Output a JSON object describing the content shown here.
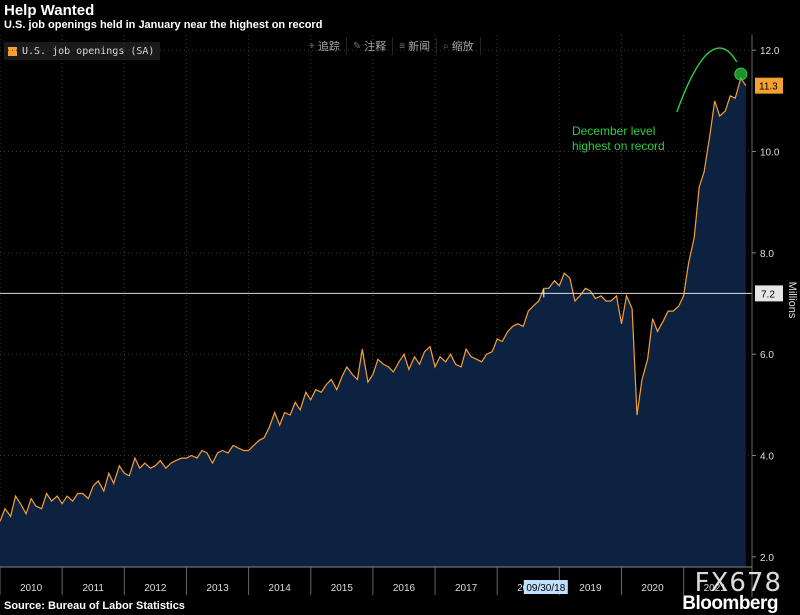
{
  "title": "Help Wanted",
  "subtitle": "U.S. job openings held in January near the highest on record",
  "source": "Source: Bureau of Labor Statistics",
  "brand": "Bloomberg",
  "watermark": "FX678",
  "toolbar": {
    "items": [
      {
        "icon": "plus-icon",
        "glyph": "+",
        "label": "追踪"
      },
      {
        "icon": "pen-icon",
        "glyph": "✎",
        "label": "注释"
      },
      {
        "icon": "news-icon",
        "glyph": "≡",
        "label": "新闻"
      },
      {
        "icon": "zoom-icon",
        "glyph": "⌕",
        "label": "缩放"
      }
    ]
  },
  "colors": {
    "line": "#f5a033",
    "fill": "#0d2240",
    "annotation": "#2ecc40",
    "background": "#000000"
  },
  "chart_data": {
    "type": "area",
    "title": "Help Wanted",
    "subtitle": "U.S. job openings held in January near the highest on record",
    "ylabel": "Millions",
    "ylim": [
      1.8,
      12.3
    ],
    "yticks": [
      2.0,
      4.0,
      6.0,
      8.0,
      10.0,
      12.0
    ],
    "yticklabels": [
      "2.0",
      "4.0",
      "6.0",
      "8.0",
      "10.0",
      "12.0"
    ],
    "xticklabels": [
      "2010",
      "2011",
      "2012",
      "2013",
      "2014",
      "2015",
      "2016",
      "2017",
      "2018",
      "2019",
      "2020",
      "2021"
    ],
    "xlim": [
      2010.0,
      2022.1
    ],
    "legend": {
      "position": "top-left",
      "entries": [
        "U.S. job openings (SA)"
      ]
    },
    "series": [
      {
        "name": "U.S. job openings (SA)",
        "x": [
          2010.0,
          2010.08,
          2010.17,
          2010.25,
          2010.33,
          2010.42,
          2010.5,
          2010.58,
          2010.67,
          2010.75,
          2010.83,
          2010.92,
          2011.0,
          2011.08,
          2011.17,
          2011.25,
          2011.33,
          2011.42,
          2011.5,
          2011.58,
          2011.67,
          2011.75,
          2011.83,
          2011.92,
          2012.0,
          2012.08,
          2012.17,
          2012.25,
          2012.33,
          2012.42,
          2012.5,
          2012.58,
          2012.67,
          2012.75,
          2012.83,
          2012.92,
          2013.0,
          2013.08,
          2013.17,
          2013.25,
          2013.33,
          2013.42,
          2013.5,
          2013.58,
          2013.67,
          2013.75,
          2013.83,
          2013.92,
          2014.0,
          2014.08,
          2014.17,
          2014.25,
          2014.33,
          2014.42,
          2014.5,
          2014.58,
          2014.67,
          2014.75,
          2014.83,
          2014.92,
          2015.0,
          2015.08,
          2015.17,
          2015.25,
          2015.33,
          2015.42,
          2015.5,
          2015.58,
          2015.67,
          2015.75,
          2015.83,
          2015.92,
          2016.0,
          2016.08,
          2016.17,
          2016.25,
          2016.33,
          2016.42,
          2016.5,
          2016.58,
          2016.67,
          2016.75,
          2016.83,
          2016.92,
          2017.0,
          2017.08,
          2017.17,
          2017.25,
          2017.33,
          2017.42,
          2017.5,
          2017.58,
          2017.67,
          2017.75,
          2017.83,
          2017.92,
          2018.0,
          2018.08,
          2018.17,
          2018.25,
          2018.33,
          2018.42,
          2018.5,
          2018.58,
          2018.67,
          2018.75,
          2018.83,
          2018.92,
          2019.0,
          2019.08,
          2019.17,
          2019.25,
          2019.33,
          2019.42,
          2019.5,
          2019.58,
          2019.67,
          2019.75,
          2019.83,
          2019.92,
          2020.0,
          2020.08,
          2020.17,
          2020.25,
          2020.33,
          2020.42,
          2020.5,
          2020.58,
          2020.67,
          2020.75,
          2020.83,
          2020.92,
          2021.0,
          2021.08,
          2021.17,
          2021.25,
          2021.33,
          2021.42,
          2021.5,
          2021.58,
          2021.67,
          2021.75,
          2021.83,
          2021.92,
          2022.0
        ],
        "y": [
          2.7,
          2.95,
          2.8,
          3.2,
          3.05,
          2.85,
          3.15,
          3.0,
          2.95,
          3.25,
          3.1,
          3.2,
          3.05,
          3.2,
          3.1,
          3.25,
          3.25,
          3.15,
          3.4,
          3.5,
          3.3,
          3.65,
          3.45,
          3.8,
          3.65,
          3.6,
          3.95,
          3.75,
          3.85,
          3.75,
          3.8,
          3.9,
          3.75,
          3.85,
          3.9,
          3.95,
          3.95,
          4.0,
          3.95,
          4.1,
          4.05,
          3.85,
          4.05,
          4.1,
          4.05,
          4.2,
          4.15,
          4.1,
          4.1,
          4.2,
          4.3,
          4.35,
          4.55,
          4.85,
          4.6,
          4.85,
          4.8,
          5.05,
          4.9,
          5.25,
          5.1,
          5.3,
          5.25,
          5.4,
          5.5,
          5.3,
          5.55,
          5.75,
          5.6,
          5.5,
          6.1,
          5.45,
          5.6,
          5.9,
          5.8,
          5.75,
          5.65,
          5.85,
          6.0,
          5.7,
          5.95,
          5.8,
          6.05,
          6.15,
          5.75,
          5.95,
          5.85,
          6.0,
          5.8,
          5.75,
          6.1,
          5.95,
          5.9,
          5.85,
          6.0,
          6.05,
          6.3,
          6.25,
          6.45,
          6.55,
          6.6,
          6.55,
          6.85,
          6.95,
          7.05,
          7.3,
          7.3,
          7.45,
          7.35,
          7.6,
          7.5,
          7.05,
          7.15,
          7.3,
          7.25,
          7.1,
          7.15,
          7.05,
          7.05,
          7.15,
          6.6,
          7.15,
          6.9,
          4.8,
          5.5,
          5.9,
          6.7,
          6.45,
          6.65,
          6.85,
          6.85,
          6.95,
          7.15,
          7.8,
          8.3,
          9.3,
          9.6,
          10.3,
          11.0,
          10.7,
          10.8,
          11.1,
          11.05,
          11.45,
          11.3
        ]
      }
    ],
    "reference_line": {
      "value": 7.2,
      "label": "7.2"
    },
    "last_value": {
      "value": 11.3,
      "label": "11.3"
    },
    "cursor_date_label": "09/30/18",
    "cursor_x": 2018.75,
    "annotation": {
      "text_lines": [
        "December level",
        "highest on record"
      ],
      "x": 2021.92,
      "y": 11.45
    }
  }
}
